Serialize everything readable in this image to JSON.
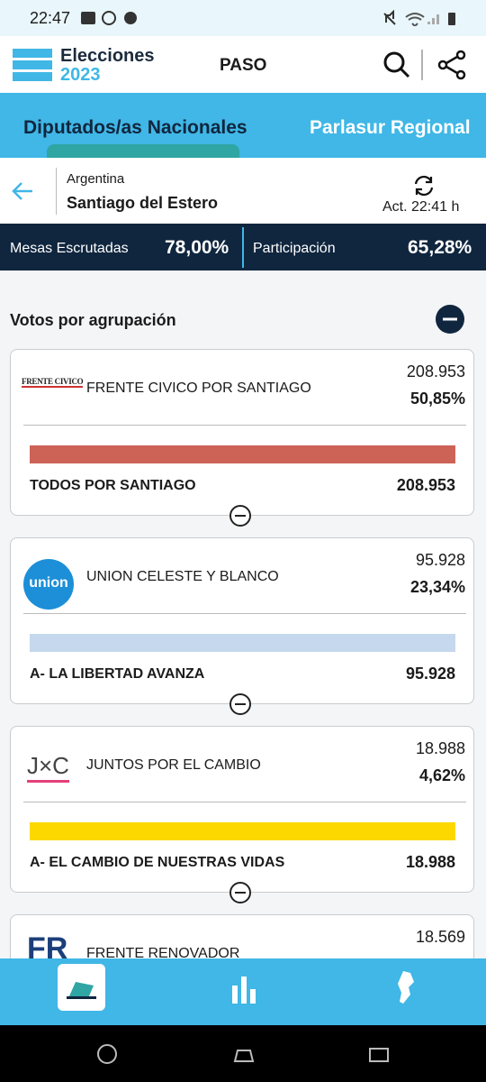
{
  "status_bar": {
    "time": "22:47"
  },
  "header": {
    "brand_top": "Elecciones",
    "brand_bottom": "2023",
    "section": "PASO"
  },
  "tabs": [
    "Diputados/as Nacionales",
    "Parlasur Regional"
  ],
  "location": {
    "country": "Argentina",
    "district": "Santiago del Estero",
    "updated": "Act. 22:41 h"
  },
  "stats": {
    "tables_label": "Mesas Escrutadas",
    "tables_value": "78,00%",
    "turnout_label": "Participación",
    "turnout_value": "65,28%"
  },
  "votes_title": "Votos por agrupación",
  "parties": [
    {
      "logo": "FRENTE CIVICO",
      "name": "FRENTE CIVICO POR SANTIAGO",
      "votes": "208.953",
      "percent": "50,85%",
      "color": "#cd6257",
      "list_name": "TODOS POR SANTIAGO",
      "list_votes": "208.953"
    },
    {
      "logo": "union",
      "name": "UNION CELESTE Y BLANCO",
      "votes": "95.928",
      "percent": "23,34%",
      "color": "#c5d8ee",
      "list_name": "A- LA LIBERTAD AVANZA",
      "list_votes": "95.928"
    },
    {
      "logo": "J×C",
      "name": "JUNTOS POR EL CAMBIO",
      "votes": "18.988",
      "percent": "4,62%",
      "color": "#fcd800",
      "list_name": "A- EL CAMBIO DE NUESTRAS VIDAS",
      "list_votes": "18.988"
    },
    {
      "logo": "FR",
      "name": "FRENTE RENOVADOR",
      "votes": "18.569"
    }
  ]
}
